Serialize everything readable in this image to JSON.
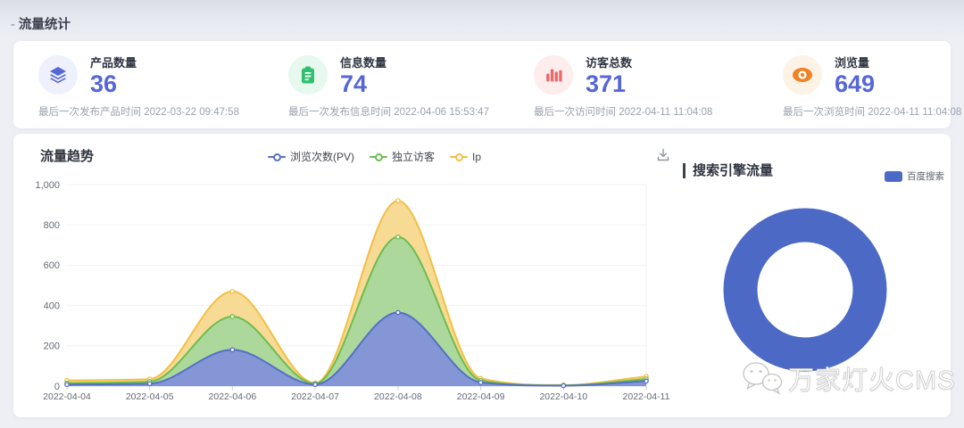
{
  "header": {
    "marker": "-",
    "label": "流量统计"
  },
  "stats": {
    "cards": [
      {
        "icon": "layers-icon",
        "icon_color": "#5566d6",
        "icon_bg": "#eef0fb",
        "label": "产品数量",
        "value": "36",
        "subtitle": "最后一次发布产品时间 2022-03-22 09:47:58"
      },
      {
        "icon": "clipboard-icon",
        "icon_color": "#2fc06e",
        "icon_bg": "#e7f8ef",
        "label": "信息数量",
        "value": "74",
        "subtitle": "最后一次发布信息时间 2022-04-06 15:53:47"
      },
      {
        "icon": "bar-chart-icon",
        "icon_color": "#ee6666",
        "icon_bg": "#fdeded",
        "label": "访客总数",
        "value": "371",
        "subtitle": "最后一次访问时间 2022-04-11 11:04:08"
      },
      {
        "icon": "eye-icon",
        "icon_color": "#f28124",
        "icon_bg": "#fdf2e6",
        "label": "浏览量",
        "value": "649",
        "subtitle": "最后一次浏览时间 2022-04-11 11:04:08"
      }
    ]
  },
  "toolbox": {
    "icon": "download-icon"
  },
  "chart_data": [
    {
      "type": "area",
      "title": "流量趋势",
      "x": [
        "2022-04-04",
        "2022-04-05",
        "2022-04-06",
        "2022-04-07",
        "2022-04-08",
        "2022-04-09",
        "2022-04-10",
        "2022-04-11"
      ],
      "series": [
        {
          "name": "浏览次数(PV)",
          "line_color": "#5470c6",
          "fill_color": "#8292d8",
          "values": [
            8,
            12,
            180,
            8,
            365,
            18,
            2,
            25
          ]
        },
        {
          "name": "独立访客",
          "line_color": "#6cbd4f",
          "fill_color": "#a8d89c",
          "values": [
            15,
            22,
            345,
            12,
            740,
            28,
            3,
            35
          ]
        },
        {
          "name": "Ip",
          "line_color": "#f3bf45",
          "fill_color": "#f7d88e",
          "values": [
            28,
            35,
            470,
            15,
            920,
            38,
            5,
            48
          ]
        }
      ],
      "draw_order": [
        "Ip",
        "独立访客",
        "浏览次数(PV)"
      ],
      "ylim": [
        0,
        1000
      ],
      "yticks": [
        0,
        200,
        400,
        600,
        800,
        1000
      ],
      "grid": true,
      "legend_position": "top-center"
    },
    {
      "type": "pie",
      "title": "搜索引擎流量",
      "donut": true,
      "slices": [
        {
          "label": "百度搜索",
          "value": 100,
          "color": "#4c69c6"
        }
      ],
      "legend_position": "top-right"
    }
  ],
  "watermark": {
    "icon": "wechat-icon",
    "text": "万家灯火CMS"
  }
}
